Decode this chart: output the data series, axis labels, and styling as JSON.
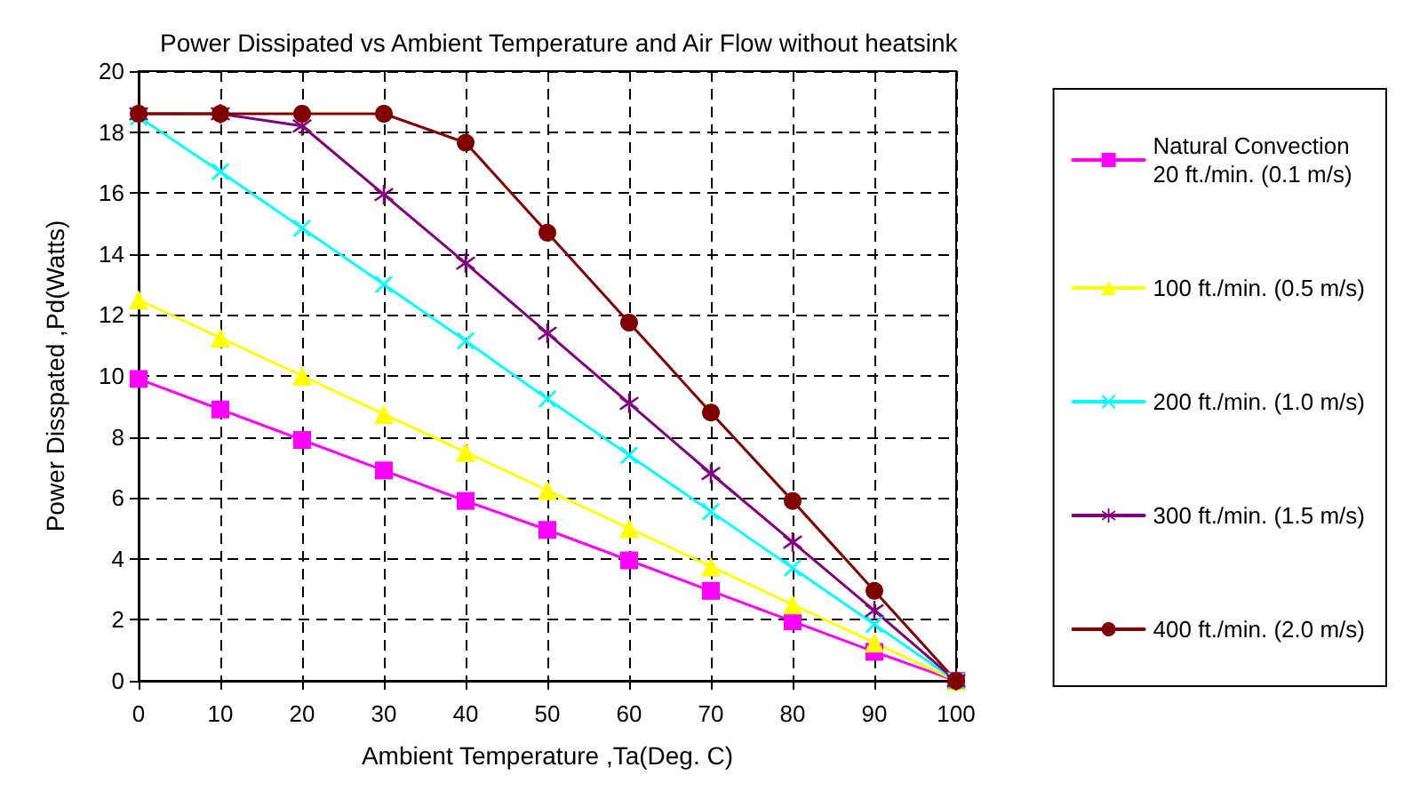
{
  "chart_data": {
    "type": "line",
    "title": "Power Dissipated vs Ambient Temperature and Air Flow without heatsink",
    "xlabel": "Ambient Temperature ,Ta(Deg. C)",
    "ylabel": "Power Disspated ,Pd(Watts)",
    "x": [
      0,
      10,
      20,
      30,
      40,
      50,
      60,
      70,
      80,
      90,
      100
    ],
    "series": [
      {
        "name": "Natural Convection\n20 ft./min. (0.1 m/s)",
        "color": "#ff00ff",
        "marker": "square",
        "values": [
          9.9,
          8.9,
          7.9,
          6.9,
          5.9,
          4.95,
          3.95,
          2.95,
          1.95,
          0.95,
          0
        ]
      },
      {
        "name": "100 ft./min. (0.5 m/s)",
        "color": "#ffff00",
        "marker": "triangle",
        "values": [
          12.5,
          11.25,
          10,
          8.75,
          7.5,
          6.25,
          5,
          3.75,
          2.5,
          1.25,
          0
        ]
      },
      {
        "name": "200 ft./min. (1.0 m/s)",
        "color": "#00ffff",
        "marker": "cross",
        "values": [
          18.5,
          16.7,
          14.85,
          13,
          11.15,
          9.25,
          7.4,
          5.55,
          3.7,
          1.85,
          0
        ]
      },
      {
        "name": "300 ft./min. (1.5 m/s)",
        "color": "#800080",
        "marker": "star",
        "values": [
          18.6,
          18.6,
          18.2,
          15.95,
          13.7,
          11.4,
          9.1,
          6.8,
          4.55,
          2.3,
          0
        ]
      },
      {
        "name": "400 ft./min. (2.0 m/s)",
        "color": "#800000",
        "marker": "circle",
        "values": [
          18.6,
          18.6,
          18.6,
          18.6,
          17.65,
          14.7,
          11.75,
          8.8,
          5.9,
          2.95,
          0
        ]
      }
    ],
    "xlim": [
      0,
      100
    ],
    "xticks": [
      0,
      10,
      20,
      30,
      40,
      50,
      60,
      70,
      80,
      90,
      100
    ],
    "ylim": [
      0,
      20
    ],
    "yticks": [
      0,
      2,
      4,
      6,
      8,
      10,
      12,
      14,
      16,
      18,
      20
    ],
    "grid": true,
    "legend": "right",
    "line_style": "solid"
  }
}
